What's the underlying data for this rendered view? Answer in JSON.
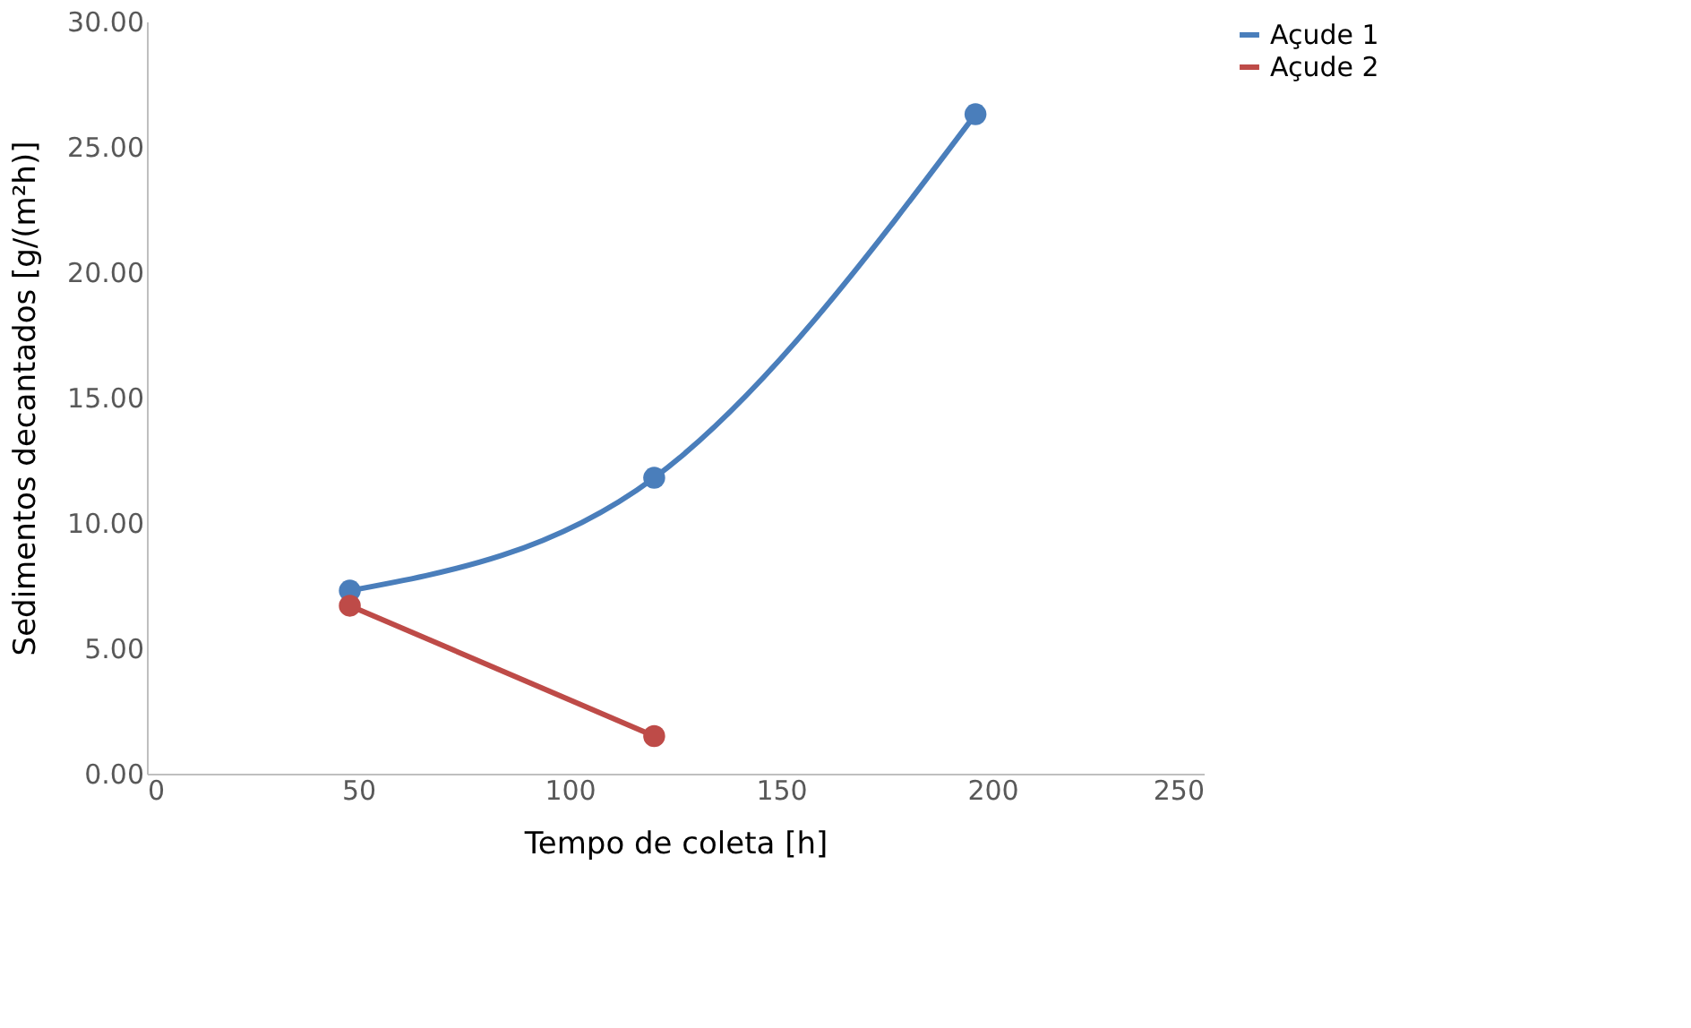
{
  "chart_data": {
    "type": "line",
    "xlabel": "Tempo de coleta [h]",
    "ylabel": "Sedimentos decantados [g/(m²h)]",
    "xlim": [
      0,
      250
    ],
    "xticks": [
      0,
      50,
      100,
      150,
      200,
      250
    ],
    "ylim": [
      0,
      30
    ],
    "yticks": [
      {
        "value": 0,
        "label": "0.00"
      },
      {
        "value": 5,
        "label": "5.00"
      },
      {
        "value": 10,
        "label": "10.00"
      },
      {
        "value": 15,
        "label": "15.00"
      },
      {
        "value": 20,
        "label": "20.00"
      },
      {
        "value": 25,
        "label": "25.00"
      },
      {
        "value": 30,
        "label": "30.00"
      }
    ],
    "series": [
      {
        "name": "Açude 1",
        "color": "#4a7ebb",
        "x": [
          48,
          120,
          196
        ],
        "values": [
          7.3,
          11.8,
          26.3
        ]
      },
      {
        "name": "Açude 2",
        "color": "#be4b48",
        "x": [
          48,
          120
        ],
        "values": [
          6.7,
          1.5
        ]
      }
    ],
    "grid": false,
    "legend": "right",
    "marker": "circle",
    "line_style": "solid"
  }
}
